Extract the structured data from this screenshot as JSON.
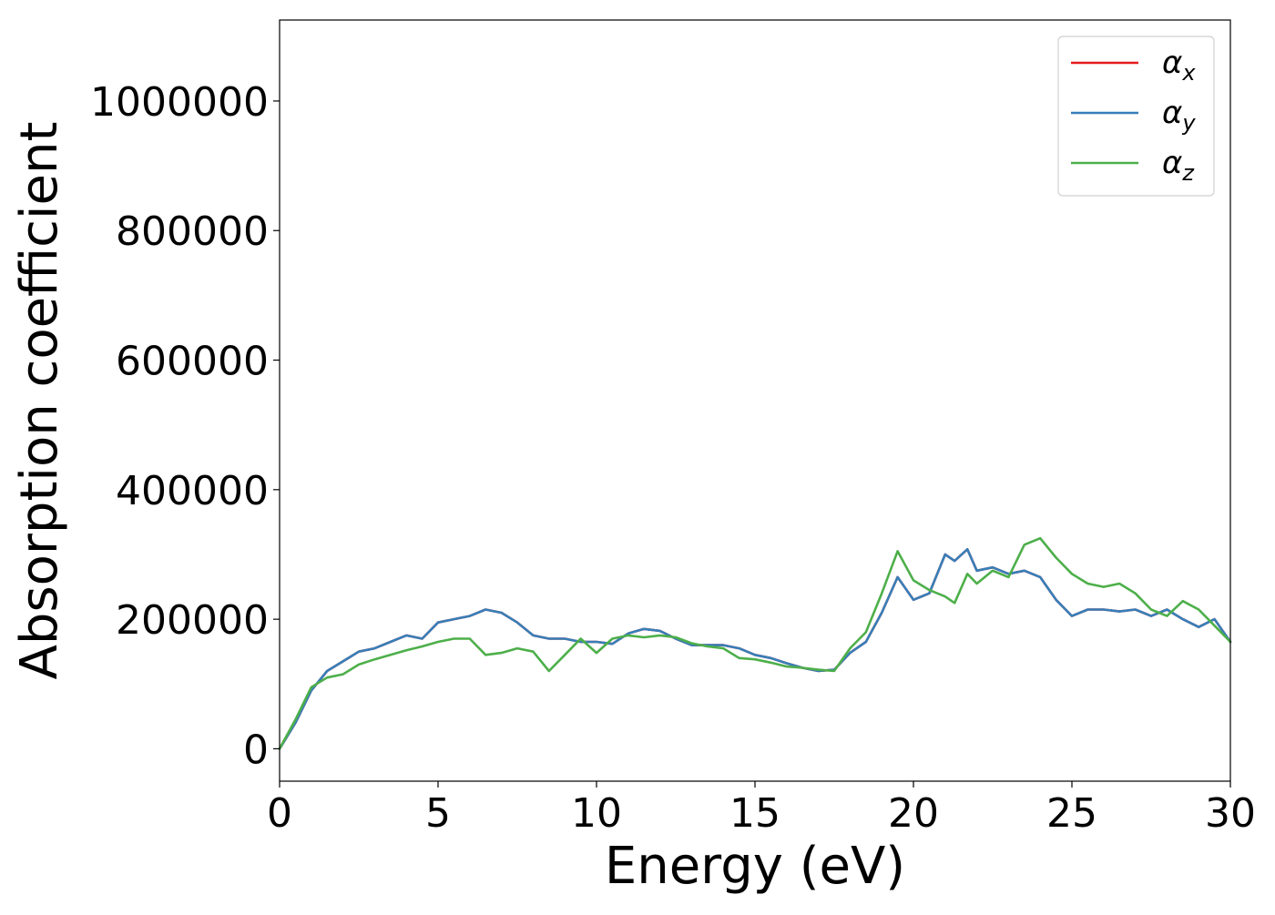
{
  "chart_data": {
    "type": "line",
    "title": "",
    "xlabel": "Energy (eV)",
    "ylabel": "Absorption coefficient",
    "xlim": [
      0,
      30
    ],
    "ylim": [
      -50000,
      1125000
    ],
    "x_ticks": [
      0,
      5,
      10,
      15,
      20,
      25,
      30
    ],
    "y_ticks": [
      0,
      200000,
      400000,
      600000,
      800000,
      1000000
    ],
    "x_tick_labels": [
      "0",
      "5",
      "10",
      "15",
      "20",
      "25",
      "30"
    ],
    "y_tick_labels": [
      "0",
      "200000",
      "400000",
      "600000",
      "800000",
      "1000000"
    ],
    "grid": false,
    "legend_position": "top-right",
    "series": [
      {
        "name": "αx",
        "legend_base": "α",
        "legend_sub": "x",
        "color": "#e41a1c",
        "x": [
          0,
          0.5,
          1.0,
          1.5,
          2.0,
          2.5,
          3.0,
          3.5,
          4.0,
          4.5,
          5.0,
          5.5,
          6.0,
          6.5,
          7.0,
          7.5,
          8.0,
          8.5,
          9.0,
          9.5,
          10.0,
          10.5,
          11.0,
          11.5,
          12.0,
          12.5,
          13.0,
          13.5,
          14.0,
          14.5,
          15.0,
          15.5,
          16.0,
          16.5,
          17.0,
          17.5,
          18.0,
          18.5,
          19.0,
          19.5,
          20.0,
          20.5,
          21.0,
          21.3,
          21.7,
          22.0,
          22.5,
          23.0,
          23.5,
          24.0,
          24.5,
          25.0,
          25.5,
          26.0,
          26.5,
          27.0,
          27.5,
          28.0,
          28.5,
          29.0,
          29.5,
          30.0
        ],
        "y": [
          0,
          40000,
          90000,
          120000,
          135000,
          150000,
          155000,
          165000,
          175000,
          170000,
          195000,
          200000,
          205000,
          215000,
          210000,
          195000,
          175000,
          170000,
          170000,
          165000,
          165000,
          162000,
          178000,
          185000,
          182000,
          170000,
          160000,
          160000,
          160000,
          155000,
          145000,
          140000,
          132000,
          125000,
          120000,
          122000,
          148000,
          165000,
          210000,
          265000,
          230000,
          240000,
          300000,
          290000,
          308000,
          275000,
          280000,
          270000,
          275000,
          265000,
          230000,
          205000,
          215000,
          215000,
          212000,
          215000,
          205000,
          215000,
          200000,
          188000,
          200000,
          165000
        ]
      },
      {
        "name": "αy",
        "legend_base": "α",
        "legend_sub": "y",
        "color": "#377eb8",
        "x": [
          0,
          0.5,
          1.0,
          1.5,
          2.0,
          2.5,
          3.0,
          3.5,
          4.0,
          4.5,
          5.0,
          5.5,
          6.0,
          6.5,
          7.0,
          7.5,
          8.0,
          8.5,
          9.0,
          9.5,
          10.0,
          10.5,
          11.0,
          11.5,
          12.0,
          12.5,
          13.0,
          13.5,
          14.0,
          14.5,
          15.0,
          15.5,
          16.0,
          16.5,
          17.0,
          17.5,
          18.0,
          18.5,
          19.0,
          19.5,
          20.0,
          20.5,
          21.0,
          21.3,
          21.7,
          22.0,
          22.5,
          23.0,
          23.5,
          24.0,
          24.5,
          25.0,
          25.5,
          26.0,
          26.5,
          27.0,
          27.5,
          28.0,
          28.5,
          29.0,
          29.5,
          30.0
        ],
        "y": [
          0,
          40000,
          90000,
          120000,
          135000,
          150000,
          155000,
          165000,
          175000,
          170000,
          195000,
          200000,
          205000,
          215000,
          210000,
          195000,
          175000,
          170000,
          170000,
          165000,
          165000,
          162000,
          178000,
          185000,
          182000,
          170000,
          160000,
          160000,
          160000,
          155000,
          145000,
          140000,
          132000,
          125000,
          120000,
          122000,
          148000,
          165000,
          210000,
          265000,
          230000,
          240000,
          300000,
          290000,
          308000,
          275000,
          280000,
          270000,
          275000,
          265000,
          230000,
          205000,
          215000,
          215000,
          212000,
          215000,
          205000,
          215000,
          200000,
          188000,
          200000,
          165000
        ]
      },
      {
        "name": "αz",
        "legend_base": "α",
        "legend_sub": "z",
        "color": "#4daf4a",
        "x": [
          0,
          0.5,
          1.0,
          1.5,
          2.0,
          2.5,
          3.0,
          3.5,
          4.0,
          4.5,
          5.0,
          5.5,
          6.0,
          6.5,
          7.0,
          7.5,
          8.0,
          8.5,
          9.0,
          9.5,
          10.0,
          10.5,
          11.0,
          11.5,
          12.0,
          12.5,
          13.0,
          13.5,
          14.0,
          14.5,
          15.0,
          15.5,
          16.0,
          16.5,
          17.0,
          17.5,
          18.0,
          18.5,
          19.0,
          19.5,
          20.0,
          20.5,
          21.0,
          21.3,
          21.7,
          22.0,
          22.5,
          23.0,
          23.5,
          24.0,
          24.5,
          25.0,
          25.5,
          26.0,
          26.5,
          27.0,
          27.5,
          28.0,
          28.5,
          29.0,
          29.5,
          30.0
        ],
        "y": [
          0,
          45000,
          95000,
          110000,
          115000,
          130000,
          138000,
          145000,
          152000,
          158000,
          165000,
          170000,
          170000,
          145000,
          148000,
          155000,
          150000,
          120000,
          145000,
          170000,
          148000,
          170000,
          175000,
          172000,
          175000,
          172000,
          163000,
          158000,
          155000,
          140000,
          138000,
          133000,
          127000,
          125000,
          122000,
          120000,
          155000,
          180000,
          240000,
          305000,
          260000,
          245000,
          235000,
          225000,
          270000,
          255000,
          275000,
          265000,
          315000,
          325000,
          295000,
          270000,
          255000,
          250000,
          255000,
          240000,
          215000,
          205000,
          228000,
          215000,
          190000,
          165000
        ]
      }
    ]
  }
}
